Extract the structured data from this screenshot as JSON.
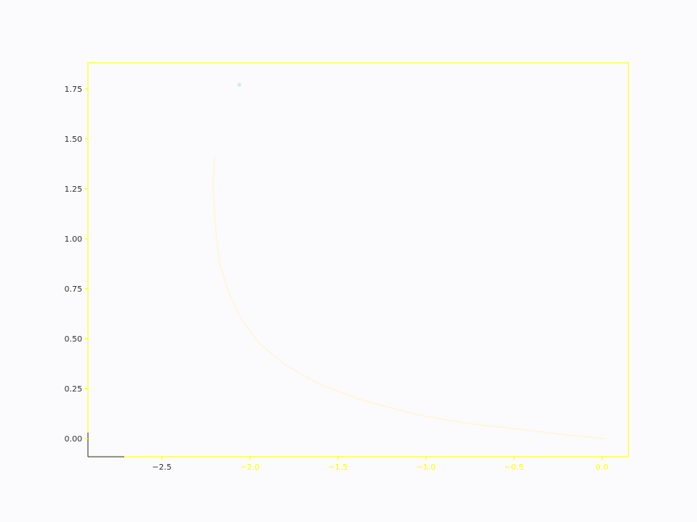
{
  "chart_data": {
    "type": "line",
    "title": "",
    "xlabel": "",
    "ylabel": "",
    "xlim": [
      -2.92,
      0.15
    ],
    "ylim": [
      -0.09,
      1.88
    ],
    "grid": false,
    "legend": "none",
    "x_ticks": [
      {
        "value": -2.5,
        "label": "−2.5"
      },
      {
        "value": -2.0,
        "label": "−2.0"
      },
      {
        "value": -1.5,
        "label": "−1.5"
      },
      {
        "value": -1.0,
        "label": "−1.0"
      },
      {
        "value": -0.5,
        "label": "−0.5"
      },
      {
        "value": 0.0,
        "label": "0.0"
      }
    ],
    "y_ticks": [
      {
        "value": 0.0,
        "label": "0.00"
      },
      {
        "value": 0.25,
        "label": "0.25"
      },
      {
        "value": 0.5,
        "label": "0.50"
      },
      {
        "value": 0.75,
        "label": "0.75"
      },
      {
        "value": 1.0,
        "label": "1.00"
      },
      {
        "value": 1.25,
        "label": "1.25"
      },
      {
        "value": 1.5,
        "label": "1.50"
      },
      {
        "value": 1.75,
        "label": "1.75"
      }
    ],
    "series": [
      {
        "color": "#fff6d6",
        "x": [
          0.02,
          -0.2,
          -0.45,
          -0.75,
          -1.05,
          -1.35,
          -1.6,
          -1.8,
          -1.95,
          -2.05,
          -2.12,
          -2.17,
          -2.19,
          -2.2,
          -2.21,
          -2.2
        ],
        "y": [
          0.0,
          0.02,
          0.045,
          0.075,
          0.12,
          0.19,
          0.27,
          0.37,
          0.48,
          0.6,
          0.73,
          0.87,
          1.0,
          1.14,
          1.27,
          1.41
        ]
      }
    ],
    "markers": [
      {
        "color": "#cdeff5",
        "x": -2.06,
        "y": 1.77
      }
    ]
  },
  "colors": {
    "background": "#fbfbfe",
    "axes_frame": "#ffff00",
    "tick_label": "#ffff00",
    "tick_label_dark": "#333333"
  }
}
